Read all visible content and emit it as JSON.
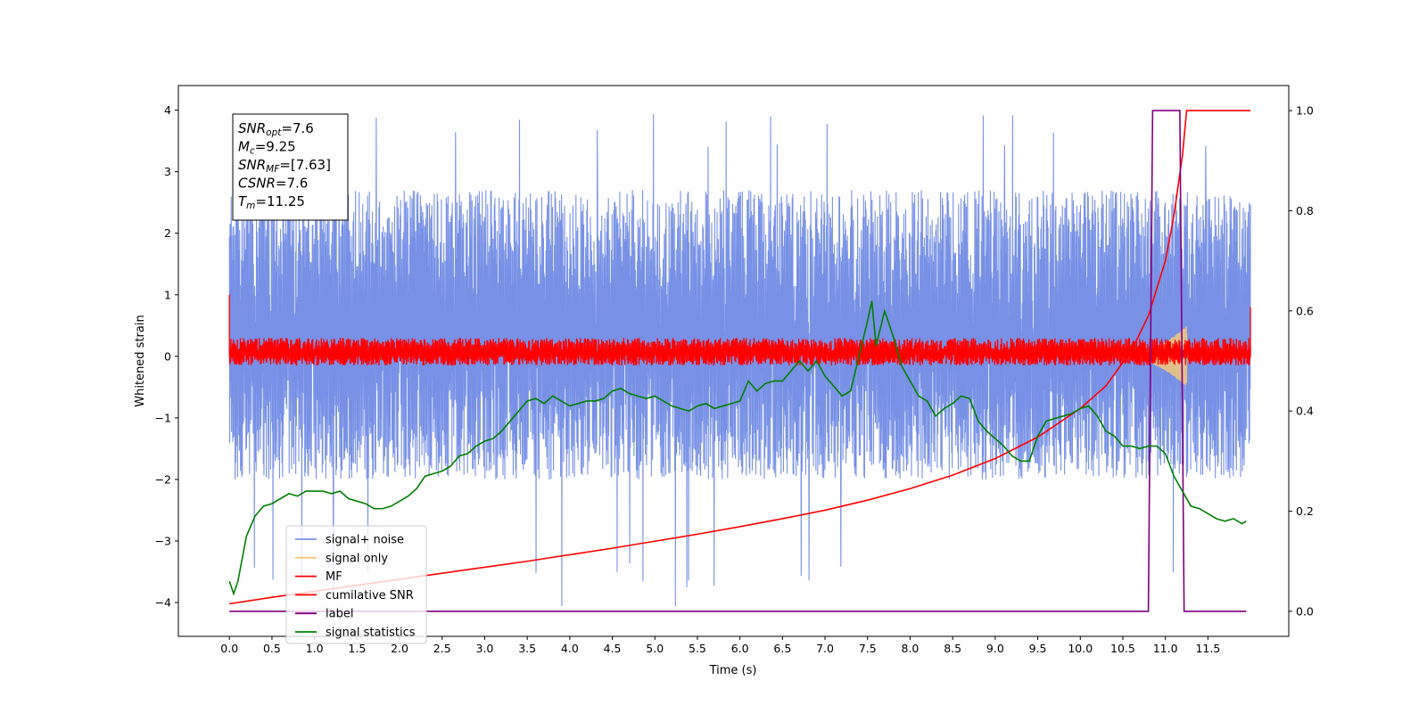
{
  "chart_data": {
    "type": "line",
    "xlabel": "Time (s)",
    "ylabel": "Whitened strain",
    "xlim": [
      -0.6,
      12.45
    ],
    "ylim": [
      -4.55,
      4.4
    ],
    "y2lim": [
      -0.05,
      1.05
    ],
    "x_ticks": [
      0.0,
      0.5,
      1.0,
      1.5,
      2.0,
      2.5,
      3.0,
      3.5,
      4.0,
      4.5,
      5.0,
      5.5,
      6.0,
      6.5,
      7.0,
      7.5,
      8.0,
      8.5,
      9.0,
      9.5,
      10.0,
      10.5,
      11.0,
      11.5
    ],
    "x_tick_labels": [
      "0.0",
      "0.5",
      "1.0",
      "1.5",
      "2.0",
      "2.5",
      "3.0",
      "3.5",
      "4.0",
      "4.5",
      "5.0",
      "5.5",
      "6.0",
      "6.5",
      "7.0",
      "7.5",
      "8.0",
      "8.5",
      "9.0",
      "9.5",
      "10.0",
      "10.5",
      "11.0",
      "11.5"
    ],
    "y_ticks": [
      -4,
      -3,
      -2,
      -1,
      0,
      1,
      2,
      3,
      4
    ],
    "y_tick_labels": [
      "−4",
      "−3",
      "−2",
      "−1",
      "0",
      "1",
      "2",
      "3",
      "4"
    ],
    "y2_ticks": [
      0.0,
      0.2,
      0.4,
      0.6,
      0.8,
      1.0
    ],
    "y2_tick_labels": [
      "0.0",
      "0.2",
      "0.4",
      "0.6",
      "0.8",
      "1.0"
    ],
    "grid": false,
    "legend_position": "lower-left",
    "annotation": {
      "lines": [
        {
          "base": "SNR",
          "sub": "opt",
          "rest": "=7.6"
        },
        {
          "base": "M",
          "sub": "c",
          "rest": "=9.25"
        },
        {
          "base": "SNR",
          "sub": "MF",
          "rest": "=[7.63]"
        },
        {
          "base": "CSNR",
          "sub": "",
          "rest": "=7.6"
        },
        {
          "base": "T",
          "sub": "m",
          "rest": "=11.25"
        }
      ]
    },
    "series": [
      {
        "name": "signal+ noise",
        "color": "#7891e6",
        "axis": "left",
        "kind": "noise",
        "t_range": [
          0.0,
          12.0
        ],
        "center": 0.3,
        "band": [
          -2.0,
          2.7
        ],
        "spike_range": [
          -4.1,
          4.0
        ]
      },
      {
        "name": "signal only",
        "color": "#f5c87a",
        "axis": "left",
        "kind": "chirp",
        "t_range": [
          10.4,
          11.25
        ],
        "peak_amplitude": 0.5
      },
      {
        "name": "MF",
        "color": "#ff0000",
        "axis": "left",
        "kind": "noise",
        "t_range": [
          0.0,
          12.0
        ],
        "center": 0.05,
        "band": [
          -0.15,
          0.3
        ]
      },
      {
        "name": "cumilative SNR",
        "color": "#ff0000",
        "axis": "right",
        "kind": "line",
        "x": [
          0.0,
          0.5,
          1.0,
          1.5,
          2.0,
          2.5,
          3.0,
          3.5,
          4.0,
          4.5,
          5.0,
          5.5,
          6.0,
          6.5,
          7.0,
          7.5,
          8.0,
          8.5,
          9.0,
          9.5,
          10.0,
          10.3,
          10.6,
          10.8,
          11.0,
          11.1,
          11.2,
          11.25,
          11.5,
          12.0
        ],
        "y": [
          0.015,
          0.028,
          0.04,
          0.052,
          0.064,
          0.076,
          0.088,
          0.1,
          0.113,
          0.126,
          0.14,
          0.154,
          0.169,
          0.185,
          0.202,
          0.222,
          0.245,
          0.272,
          0.305,
          0.348,
          0.405,
          0.45,
          0.52,
          0.59,
          0.7,
          0.79,
          0.91,
          1.0,
          1.0,
          1.0
        ]
      },
      {
        "name": "label",
        "color": "#800080",
        "axis": "right",
        "kind": "line",
        "x": [
          0.0,
          10.8,
          10.85,
          11.17,
          11.22,
          11.95
        ],
        "y": [
          0.0,
          0.0,
          1.0,
          1.0,
          0.0,
          0.0
        ]
      },
      {
        "name": "signal statistics",
        "color": "#008000",
        "axis": "right",
        "kind": "line",
        "x": [
          0.0,
          0.05,
          0.1,
          0.2,
          0.3,
          0.4,
          0.5,
          0.6,
          0.7,
          0.8,
          0.9,
          1.0,
          1.1,
          1.2,
          1.3,
          1.4,
          1.5,
          1.6,
          1.7,
          1.8,
          1.9,
          2.0,
          2.1,
          2.2,
          2.3,
          2.4,
          2.5,
          2.6,
          2.7,
          2.8,
          2.9,
          3.0,
          3.1,
          3.2,
          3.3,
          3.4,
          3.5,
          3.6,
          3.7,
          3.8,
          3.9,
          4.0,
          4.1,
          4.2,
          4.3,
          4.4,
          4.5,
          4.6,
          4.7,
          4.8,
          4.9,
          5.0,
          5.1,
          5.2,
          5.3,
          5.4,
          5.5,
          5.6,
          5.7,
          5.8,
          5.9,
          6.0,
          6.1,
          6.2,
          6.3,
          6.4,
          6.5,
          6.6,
          6.7,
          6.8,
          6.9,
          7.0,
          7.1,
          7.2,
          7.3,
          7.4,
          7.5,
          7.55,
          7.6,
          7.7,
          7.8,
          7.9,
          8.0,
          8.1,
          8.2,
          8.3,
          8.4,
          8.5,
          8.6,
          8.7,
          8.8,
          8.9,
          9.0,
          9.1,
          9.2,
          9.3,
          9.4,
          9.5,
          9.6,
          9.7,
          9.8,
          9.9,
          10.0,
          10.1,
          10.2,
          10.3,
          10.4,
          10.5,
          10.6,
          10.7,
          10.8,
          10.9,
          11.0,
          11.1,
          11.2,
          11.3,
          11.4,
          11.5,
          11.6,
          11.7,
          11.8,
          11.9,
          11.95
        ],
        "y": [
          0.06,
          0.035,
          0.06,
          0.15,
          0.19,
          0.21,
          0.215,
          0.225,
          0.235,
          0.23,
          0.24,
          0.24,
          0.24,
          0.235,
          0.24,
          0.225,
          0.22,
          0.215,
          0.205,
          0.205,
          0.21,
          0.22,
          0.23,
          0.245,
          0.27,
          0.275,
          0.28,
          0.29,
          0.31,
          0.315,
          0.33,
          0.34,
          0.345,
          0.36,
          0.38,
          0.4,
          0.42,
          0.425,
          0.415,
          0.43,
          0.42,
          0.41,
          0.415,
          0.42,
          0.42,
          0.425,
          0.44,
          0.445,
          0.435,
          0.43,
          0.425,
          0.43,
          0.42,
          0.41,
          0.405,
          0.4,
          0.41,
          0.415,
          0.405,
          0.41,
          0.415,
          0.42,
          0.46,
          0.44,
          0.455,
          0.46,
          0.46,
          0.48,
          0.5,
          0.48,
          0.5,
          0.47,
          0.45,
          0.43,
          0.44,
          0.51,
          0.58,
          0.62,
          0.53,
          0.6,
          0.55,
          0.49,
          0.46,
          0.43,
          0.42,
          0.39,
          0.405,
          0.415,
          0.43,
          0.425,
          0.38,
          0.36,
          0.345,
          0.33,
          0.31,
          0.3,
          0.3,
          0.35,
          0.38,
          0.385,
          0.39,
          0.395,
          0.405,
          0.41,
          0.39,
          0.36,
          0.35,
          0.33,
          0.33,
          0.325,
          0.33,
          0.33,
          0.315,
          0.27,
          0.24,
          0.21,
          0.205,
          0.195,
          0.185,
          0.18,
          0.185,
          0.175,
          0.18
        ]
      }
    ]
  }
}
